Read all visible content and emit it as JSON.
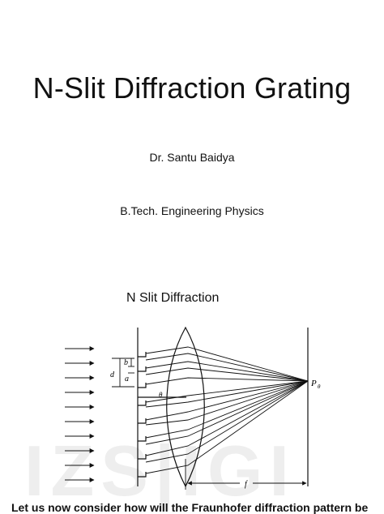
{
  "slide": {
    "title": "N-Slit Diffraction Grating",
    "author": "Dr. Santu Baidya",
    "course": "B.Tech. Engineering Physics",
    "subheading": "N Slit Diffraction",
    "bottom_text": "Let us now consider how will the Fraunhofer diffraction pattern be"
  },
  "figure": {
    "label_b": "b",
    "label_d": "d",
    "label_a": "a",
    "label_theta": "θ",
    "label_p": "P",
    "label_p_sub": "θ",
    "label_f": "f"
  },
  "watermark": {
    "icon": "watermark-logo"
  }
}
